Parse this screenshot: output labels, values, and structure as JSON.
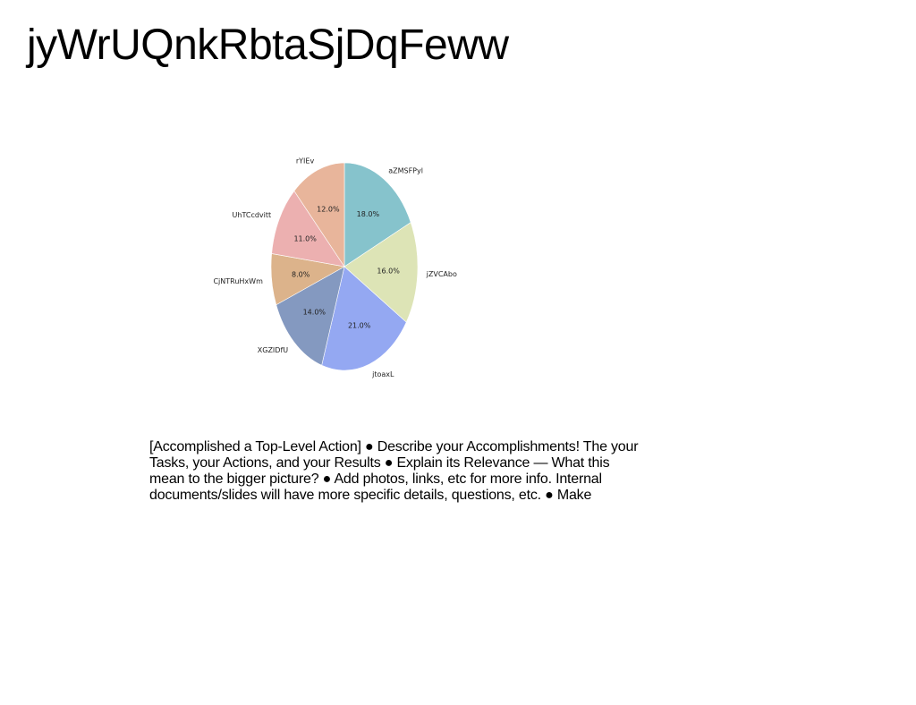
{
  "slide": {
    "title": "jyWrUQnkRbtaSjDqFeww",
    "body": "[Accomplished a Top-Level Action] ● Describe your Accomplishments! The your Tasks, your Actions, and your Results ● Explain its Relevance — What this mean to the bigger picture? ● Add photos, links, etc for more info. Internal documents/slides will have more specific details, questions, etc. ● Make"
  },
  "chart_data": {
    "type": "pie",
    "title": "",
    "categories": [
      "aZMSFPyl",
      "jZVCAbo",
      "jtoaxL",
      "XGZIDfU",
      "CjNTRuHxWm",
      "UhTCcdvitt",
      "rYIEv"
    ],
    "values": [
      18.0,
      16.0,
      21.0,
      14.0,
      8.0,
      11.0,
      12.0
    ],
    "value_labels": [
      "18.0%",
      "16.0%",
      "21.0%",
      "14.0%",
      "8.0%",
      "11.0%",
      "12.0%"
    ],
    "colors": [
      "#86c3cc",
      "#dde4b6",
      "#94a8f2",
      "#8499c0",
      "#dcb38b",
      "#ecb0b0",
      "#e8b59b"
    ],
    "start_angle": "12 o'clock",
    "direction": "clockwise"
  }
}
